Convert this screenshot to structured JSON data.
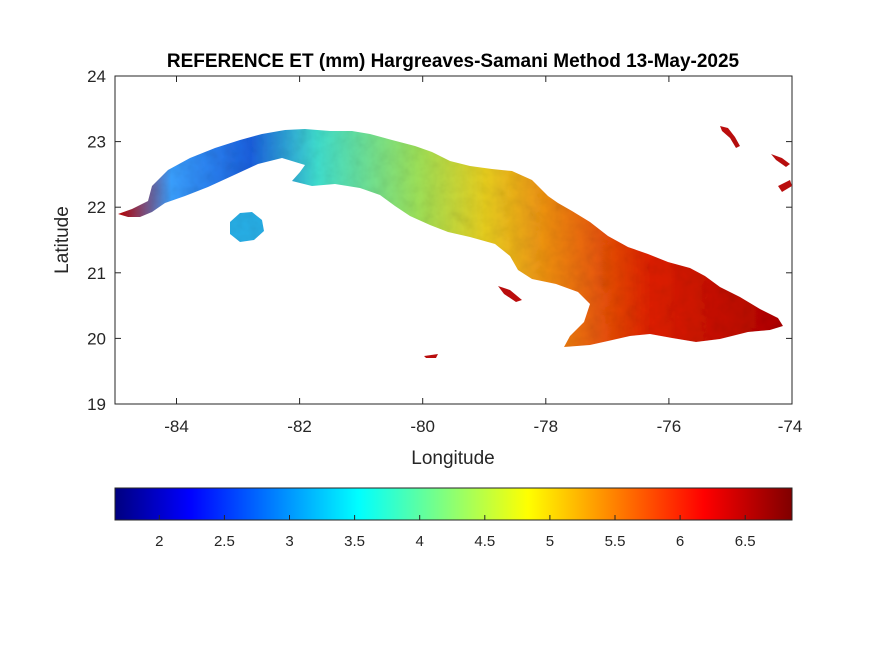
{
  "map": {
    "title": "REFERENCE ET (mm) Hargreaves-Samani Method  13-May-2025",
    "xlabel": "Longitude",
    "ylabel": "Latitude",
    "x_ticks": [
      "-84",
      "-82",
      "-80",
      "-78",
      "-76",
      "-74"
    ],
    "y_ticks": [
      "24",
      "23",
      "22",
      "21",
      "20",
      "19"
    ],
    "x_range": [
      -85,
      -74
    ],
    "y_range": [
      19,
      24
    ],
    "region": "Cuba"
  },
  "colorbar": {
    "colormap": "jet",
    "range": [
      1.6,
      6.8
    ],
    "ticks": [
      "2",
      "2.5",
      "3",
      "3.5",
      "4",
      "4.5",
      "5",
      "5.5",
      "6",
      "6.5"
    ]
  },
  "colors": {
    "low": "#000080",
    "high": "#800000",
    "axis": "#262626"
  }
}
